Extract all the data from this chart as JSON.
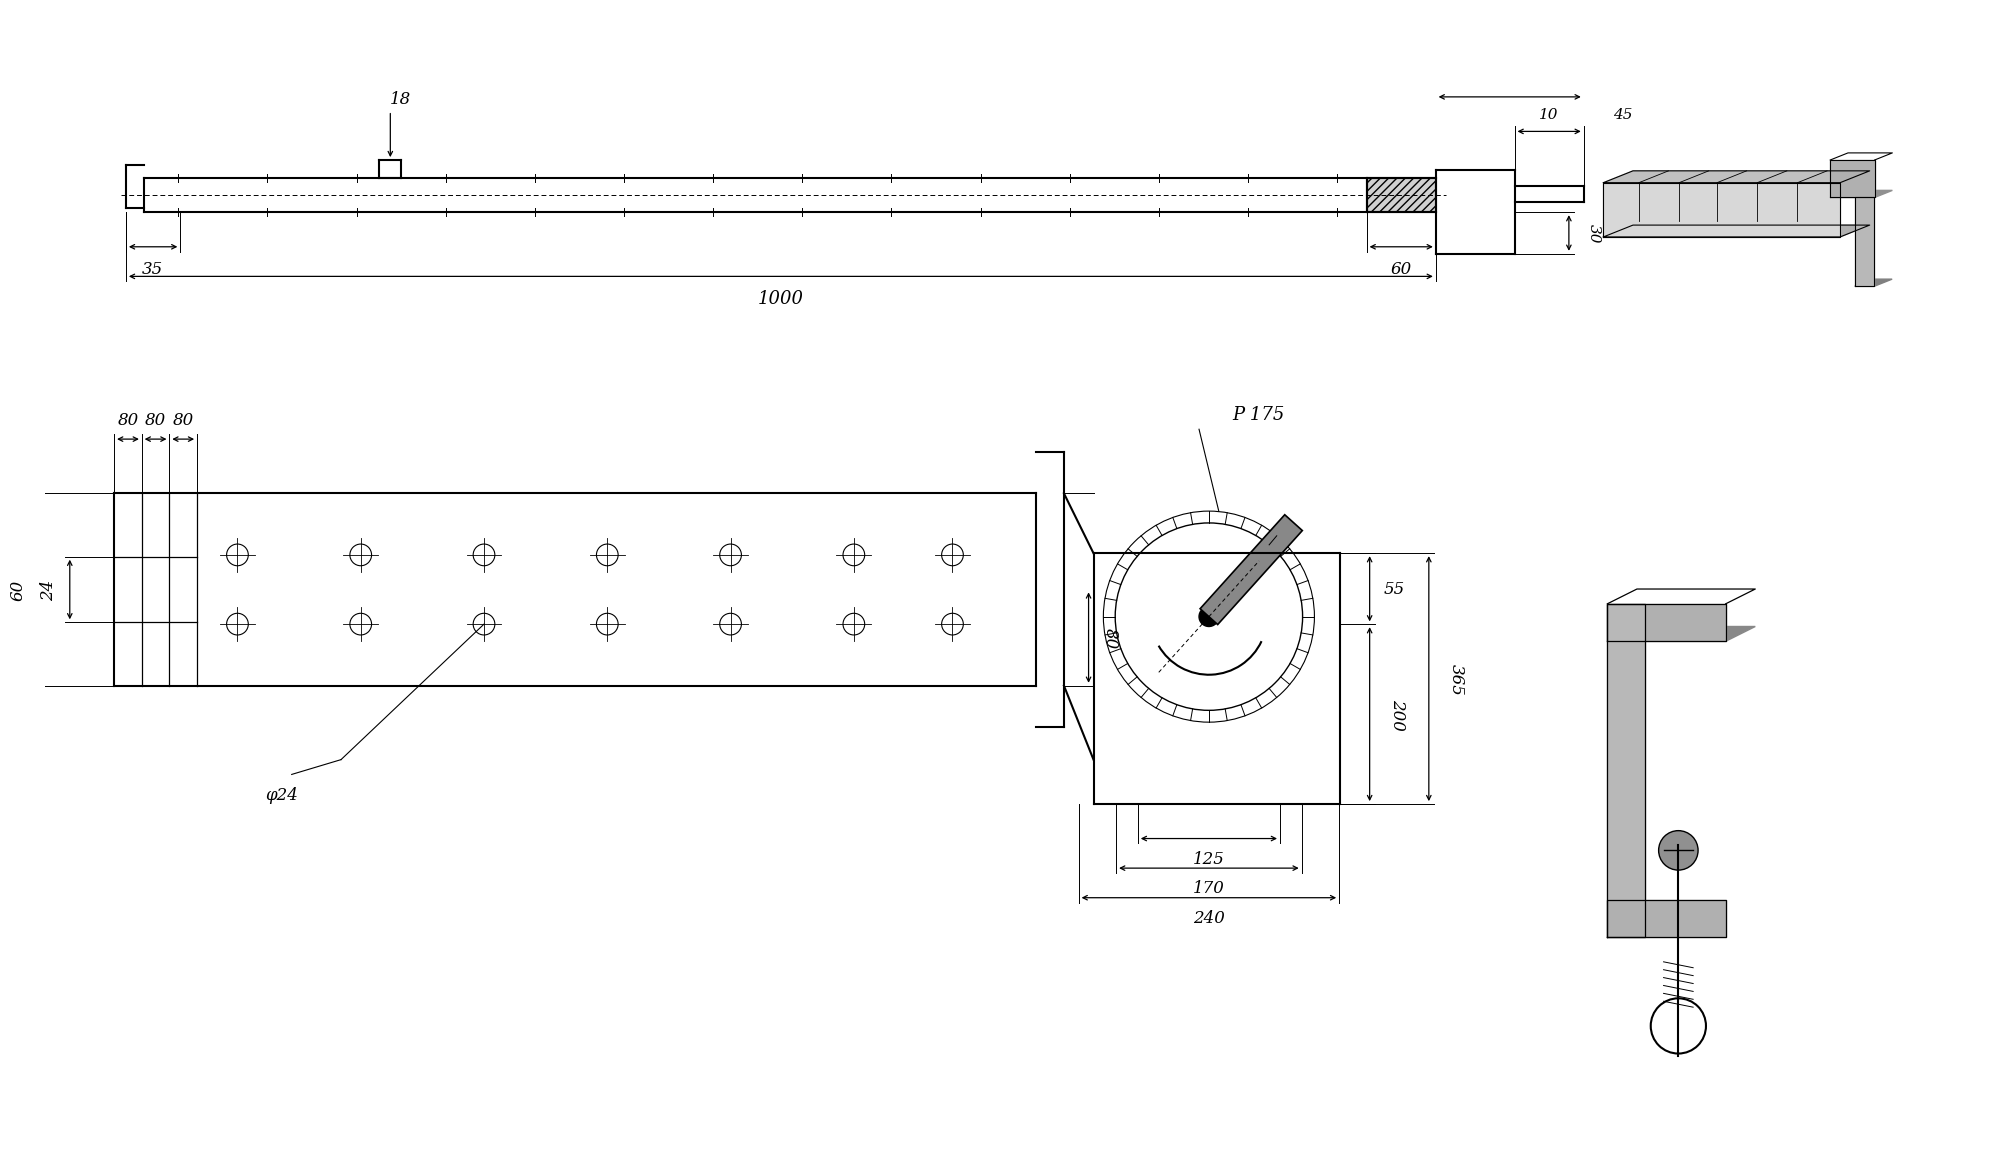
{
  "bg_color": "#ffffff",
  "lc": "#000000",
  "labels": {
    "18": "18",
    "35": "35",
    "60": "60",
    "1000": "1000",
    "10": "10",
    "45": "45",
    "30": "30",
    "80a": "80",
    "80b": "80",
    "80c": "80",
    "24": "24",
    "60b": "60",
    "phi24": "φ24",
    "80d": "80",
    "p175": "P 175",
    "55": "55",
    "200": "200",
    "365": "365",
    "125": "125",
    "170": "170",
    "240": "240"
  },
  "fs": 11
}
